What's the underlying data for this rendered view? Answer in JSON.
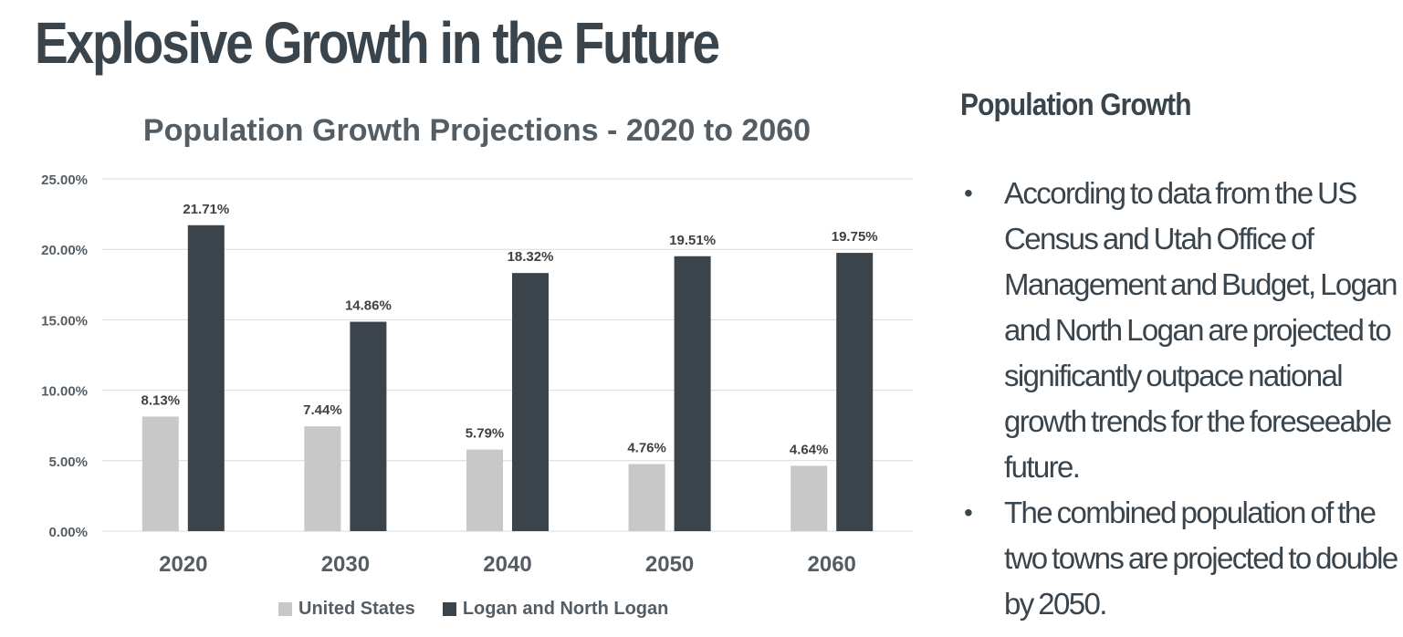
{
  "slide": {
    "title": "Explosive Growth in the Future"
  },
  "side_panel": {
    "heading": "Population Growth",
    "bullets": [
      "According to data from  the US Census and Utah Office of Management and Budget, Logan and North Logan are  projected to significantly outpace national growth trends for the foreseeable future.",
      "The  combined population of the two towns are  projected to double by 2050."
    ]
  },
  "chart_data": {
    "type": "bar",
    "title": "Population Growth Projections - 2020 to 2060",
    "categories": [
      "2020",
      "2030",
      "2040",
      "2050",
      "2060"
    ],
    "series": [
      {
        "name": "United States",
        "values": [
          8.13,
          7.44,
          5.79,
          4.76,
          4.64
        ],
        "labels": [
          "8.13%",
          "7.44%",
          "5.79%",
          "4.76%",
          "4.64%"
        ],
        "color": "#c8c8c8"
      },
      {
        "name": "Logan and North Logan",
        "values": [
          21.71,
          14.86,
          18.32,
          19.51,
          19.75
        ],
        "labels": [
          "21.71%",
          "14.86%",
          "18.32%",
          "19.51%",
          "19.75%"
        ],
        "color": "#3b444b"
      }
    ],
    "yticks": [
      "0.00%",
      "5.00%",
      "10.00%",
      "15.00%",
      "20.00%",
      "25.00%"
    ],
    "ylim": [
      0,
      25
    ],
    "grid": true,
    "legend_position": "bottom",
    "axis_label_color": "#555d64",
    "gridline_color": "#d9d9d9"
  }
}
